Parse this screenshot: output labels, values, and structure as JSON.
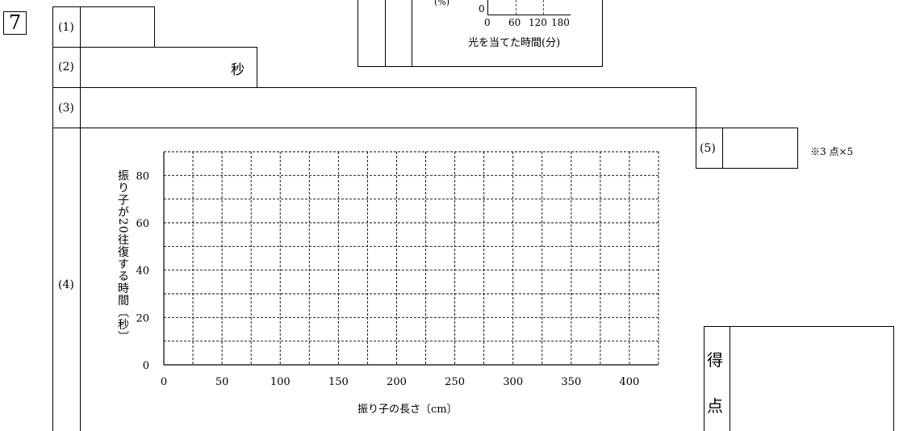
{
  "question_number": "7",
  "answer_rows": [
    {
      "label": "(1)",
      "answer": "",
      "unit": ""
    },
    {
      "label": "(2)",
      "answer": "",
      "unit": "秒"
    },
    {
      "label": "(3)",
      "answer": "",
      "unit": ""
    },
    {
      "label": "(4)",
      "answer": "",
      "unit": ""
    },
    {
      "label": "(5)",
      "answer": "",
      "unit": ""
    }
  ],
  "scoring_note": "※3 点×5",
  "score_box": {
    "label_top": "得",
    "label_bottom": "点",
    "value": ""
  },
  "inset_chart": {
    "ylabel_fragment": "(%)",
    "zero_label": "0",
    "x_ticks": [
      "0",
      "60",
      "120",
      "180"
    ],
    "xlabel": "光を当てた時間(分)"
  },
  "chart_data": {
    "type": "scatter",
    "title": "",
    "xlabel": "振り子の長さ〔cm〕",
    "ylabel": "振り子が20往復する時間〔秒〕",
    "xlim": [
      0,
      425
    ],
    "ylim": [
      0,
      90
    ],
    "x_ticks": [
      0,
      50,
      100,
      150,
      200,
      250,
      300,
      350,
      400
    ],
    "y_ticks": [
      0,
      20,
      40,
      60,
      80
    ],
    "grid": true,
    "grid_style": "dashed",
    "series": []
  }
}
